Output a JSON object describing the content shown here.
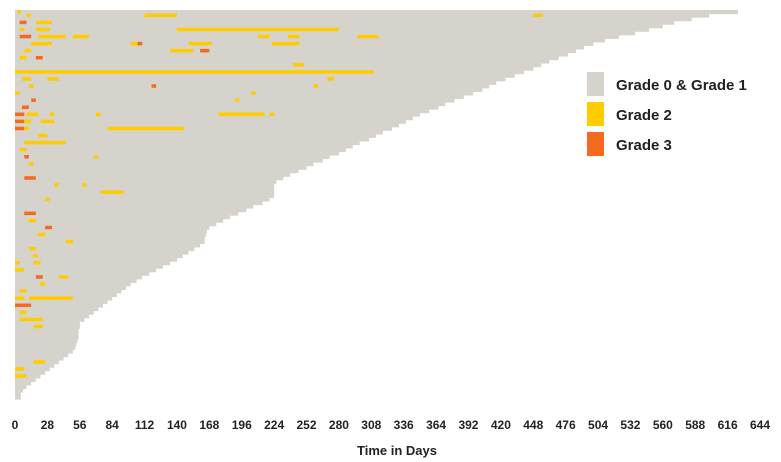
{
  "chart_data": {
    "type": "bar",
    "orientation": "horizontal",
    "stacked_timeline": true,
    "xlabel": "Time in Days",
    "xlim": [
      0,
      644
    ],
    "xticks": [
      0,
      28,
      56,
      84,
      112,
      140,
      168,
      196,
      224,
      252,
      280,
      308,
      336,
      364,
      392,
      420,
      448,
      476,
      504,
      532,
      560,
      588,
      616,
      644
    ],
    "legend": {
      "placement": "right",
      "items": [
        {
          "label": "Grade 0 & Grade 1",
          "color": "#d6d3cc"
        },
        {
          "label": "Grade 2",
          "color": "#ffcc00"
        },
        {
          "label": "Grade 3",
          "color": "#f26b21"
        }
      ]
    },
    "colors": {
      "grade01": "#d6d3cc",
      "grade2": "#ffcc00",
      "grade3": "#f26b21"
    },
    "durations_profile": [
      [
        0,
        625
      ],
      [
        0.5,
        610
      ],
      [
        1,
        600
      ],
      [
        2,
        585
      ],
      [
        3,
        570
      ],
      [
        4,
        560
      ],
      [
        5,
        548
      ],
      [
        6,
        536
      ],
      [
        7,
        522
      ],
      [
        8,
        510
      ],
      [
        9,
        500
      ],
      [
        10,
        492
      ],
      [
        11,
        485
      ],
      [
        12,
        478
      ],
      [
        13,
        470
      ],
      [
        14,
        462
      ],
      [
        15,
        455
      ],
      [
        16,
        448
      ],
      [
        17,
        440
      ],
      [
        18,
        432
      ],
      [
        19,
        424
      ],
      [
        20,
        416
      ],
      [
        21,
        410
      ],
      [
        22,
        404
      ],
      [
        23,
        396
      ],
      [
        24,
        388
      ],
      [
        25,
        380
      ],
      [
        26,
        372
      ],
      [
        27,
        366
      ],
      [
        28,
        358
      ],
      [
        29,
        350
      ],
      [
        30,
        344
      ],
      [
        31,
        338
      ],
      [
        32,
        332
      ],
      [
        33,
        326
      ],
      [
        34,
        318
      ],
      [
        35,
        312
      ],
      [
        36,
        306
      ],
      [
        37,
        298
      ],
      [
        38,
        292
      ],
      [
        39,
        286
      ],
      [
        40,
        280
      ],
      [
        41,
        272
      ],
      [
        42,
        266
      ],
      [
        43,
        258
      ],
      [
        44,
        252
      ],
      [
        45,
        245
      ],
      [
        46,
        238
      ],
      [
        47,
        232
      ],
      [
        48,
        226
      ],
      [
        49,
        224
      ],
      [
        50,
        224
      ],
      [
        51,
        224
      ],
      [
        52,
        224
      ],
      [
        53,
        220
      ],
      [
        54,
        214
      ],
      [
        55,
        206
      ],
      [
        56,
        200
      ],
      [
        57,
        193
      ],
      [
        58,
        186
      ],
      [
        59,
        180
      ],
      [
        60,
        174
      ],
      [
        61,
        168
      ],
      [
        62,
        166
      ],
      [
        63,
        165
      ],
      [
        64,
        164
      ],
      [
        65,
        164
      ],
      [
        66,
        160
      ],
      [
        67,
        155
      ],
      [
        68,
        150
      ],
      [
        69,
        145
      ],
      [
        70,
        140
      ],
      [
        71,
        134
      ],
      [
        72,
        128
      ],
      [
        73,
        122
      ],
      [
        74,
        116
      ],
      [
        75,
        110
      ],
      [
        76,
        105
      ],
      [
        77,
        100
      ],
      [
        78,
        96
      ],
      [
        79,
        92
      ],
      [
        80,
        88
      ],
      [
        81,
        84
      ],
      [
        82,
        80
      ],
      [
        83,
        76
      ],
      [
        84,
        72
      ],
      [
        85,
        68
      ],
      [
        86,
        64
      ],
      [
        87,
        60
      ],
      [
        88,
        56
      ],
      [
        89,
        56
      ],
      [
        90,
        55
      ],
      [
        91,
        55
      ],
      [
        92,
        55
      ],
      [
        93,
        54
      ],
      [
        94,
        53
      ],
      [
        95,
        52
      ],
      [
        96,
        50
      ],
      [
        97,
        46
      ],
      [
        98,
        42
      ],
      [
        99,
        38
      ],
      [
        100,
        34
      ],
      [
        101,
        30
      ],
      [
        102,
        26
      ],
      [
        103,
        22
      ],
      [
        104,
        18
      ],
      [
        105,
        14
      ],
      [
        106,
        10
      ],
      [
        107,
        7
      ],
      [
        108,
        5
      ]
    ],
    "events": [
      [
        0,
        2,
        3,
        "g2"
      ],
      [
        1,
        10,
        4,
        "g2"
      ],
      [
        1,
        112,
        28,
        "g2"
      ],
      [
        1,
        448,
        8,
        "g2"
      ],
      [
        3,
        4,
        6,
        "g3"
      ],
      [
        3,
        18,
        14,
        "g2"
      ],
      [
        5,
        4,
        4,
        "g2"
      ],
      [
        5,
        18,
        12,
        "g2"
      ],
      [
        5,
        140,
        140,
        "g2"
      ],
      [
        7,
        4,
        10,
        "g3"
      ],
      [
        7,
        20,
        24,
        "g2"
      ],
      [
        7,
        50,
        14,
        "g2"
      ],
      [
        7,
        210,
        10,
        "g2"
      ],
      [
        7,
        236,
        10,
        "g2"
      ],
      [
        7,
        296,
        18,
        "g2"
      ],
      [
        9,
        14,
        18,
        "g2"
      ],
      [
        9,
        100,
        8,
        "g2"
      ],
      [
        9,
        106,
        4,
        "g3"
      ],
      [
        9,
        150,
        20,
        "g2"
      ],
      [
        9,
        222,
        24,
        "g2"
      ],
      [
        11,
        8,
        6,
        "g2"
      ],
      [
        11,
        134,
        20,
        "g2"
      ],
      [
        11,
        160,
        8,
        "g3"
      ],
      [
        13,
        4,
        6,
        "g2"
      ],
      [
        13,
        18,
        6,
        "g3"
      ],
      [
        15,
        240,
        10,
        "g2"
      ],
      [
        17,
        0,
        140,
        "g2"
      ],
      [
        17,
        140,
        170,
        "g2"
      ],
      [
        19,
        6,
        8,
        "g2"
      ],
      [
        19,
        28,
        10,
        "g2"
      ],
      [
        19,
        270,
        6,
        "g2"
      ],
      [
        21,
        12,
        4,
        "g2"
      ],
      [
        21,
        118,
        4,
        "g3"
      ],
      [
        21,
        258,
        4,
        "g2"
      ],
      [
        23,
        0,
        4,
        "g2"
      ],
      [
        23,
        204,
        4,
        "g2"
      ],
      [
        25,
        14,
        4,
        "g3"
      ],
      [
        25,
        190,
        4,
        "g2"
      ],
      [
        27,
        6,
        6,
        "g3"
      ],
      [
        29,
        0,
        8,
        "g3"
      ],
      [
        29,
        10,
        10,
        "g2"
      ],
      [
        29,
        30,
        4,
        "g2"
      ],
      [
        29,
        70,
        4,
        "g2"
      ],
      [
        29,
        176,
        40,
        "g2"
      ],
      [
        29,
        220,
        4,
        "g2"
      ],
      [
        31,
        0,
        8,
        "g3"
      ],
      [
        31,
        8,
        6,
        "g2"
      ],
      [
        31,
        22,
        12,
        "g2"
      ],
      [
        33,
        0,
        8,
        "g3"
      ],
      [
        33,
        8,
        4,
        "g2"
      ],
      [
        33,
        80,
        40,
        "g2"
      ],
      [
        33,
        120,
        26,
        "g2"
      ],
      [
        35,
        20,
        8,
        "g2"
      ],
      [
        37,
        8,
        36,
        "g2"
      ],
      [
        39,
        4,
        6,
        "g2"
      ],
      [
        41,
        8,
        4,
        "g3"
      ],
      [
        41,
        68,
        4,
        "g2"
      ],
      [
        43,
        12,
        4,
        "g2"
      ],
      [
        47,
        8,
        10,
        "g3"
      ],
      [
        49,
        34,
        4,
        "g2"
      ],
      [
        49,
        58,
        4,
        "g2"
      ],
      [
        51,
        74,
        20,
        "g2"
      ],
      [
        53,
        26,
        4,
        "g2"
      ],
      [
        57,
        8,
        10,
        "g3"
      ],
      [
        59,
        12,
        6,
        "g2"
      ],
      [
        61,
        26,
        6,
        "g3"
      ],
      [
        63,
        20,
        6,
        "g2"
      ],
      [
        65,
        44,
        6,
        "g2"
      ],
      [
        67,
        12,
        6,
        "g2"
      ],
      [
        69,
        16,
        4,
        "g2"
      ],
      [
        71,
        0,
        4,
        "g2"
      ],
      [
        71,
        16,
        6,
        "g2"
      ],
      [
        73,
        0,
        8,
        "g2"
      ],
      [
        75,
        18,
        6,
        "g3"
      ],
      [
        75,
        38,
        8,
        "g2"
      ],
      [
        77,
        22,
        4,
        "g2"
      ],
      [
        79,
        4,
        6,
        "g2"
      ],
      [
        81,
        0,
        8,
        "g2"
      ],
      [
        81,
        12,
        38,
        "g2"
      ],
      [
        83,
        0,
        14,
        "g3"
      ],
      [
        85,
        4,
        6,
        "g2"
      ],
      [
        87,
        4,
        20,
        "g2"
      ],
      [
        89,
        16,
        8,
        "g2"
      ],
      [
        99,
        16,
        10,
        "g2"
      ],
      [
        101,
        0,
        8,
        "g2"
      ],
      [
        103,
        0,
        10,
        "g2"
      ]
    ]
  }
}
